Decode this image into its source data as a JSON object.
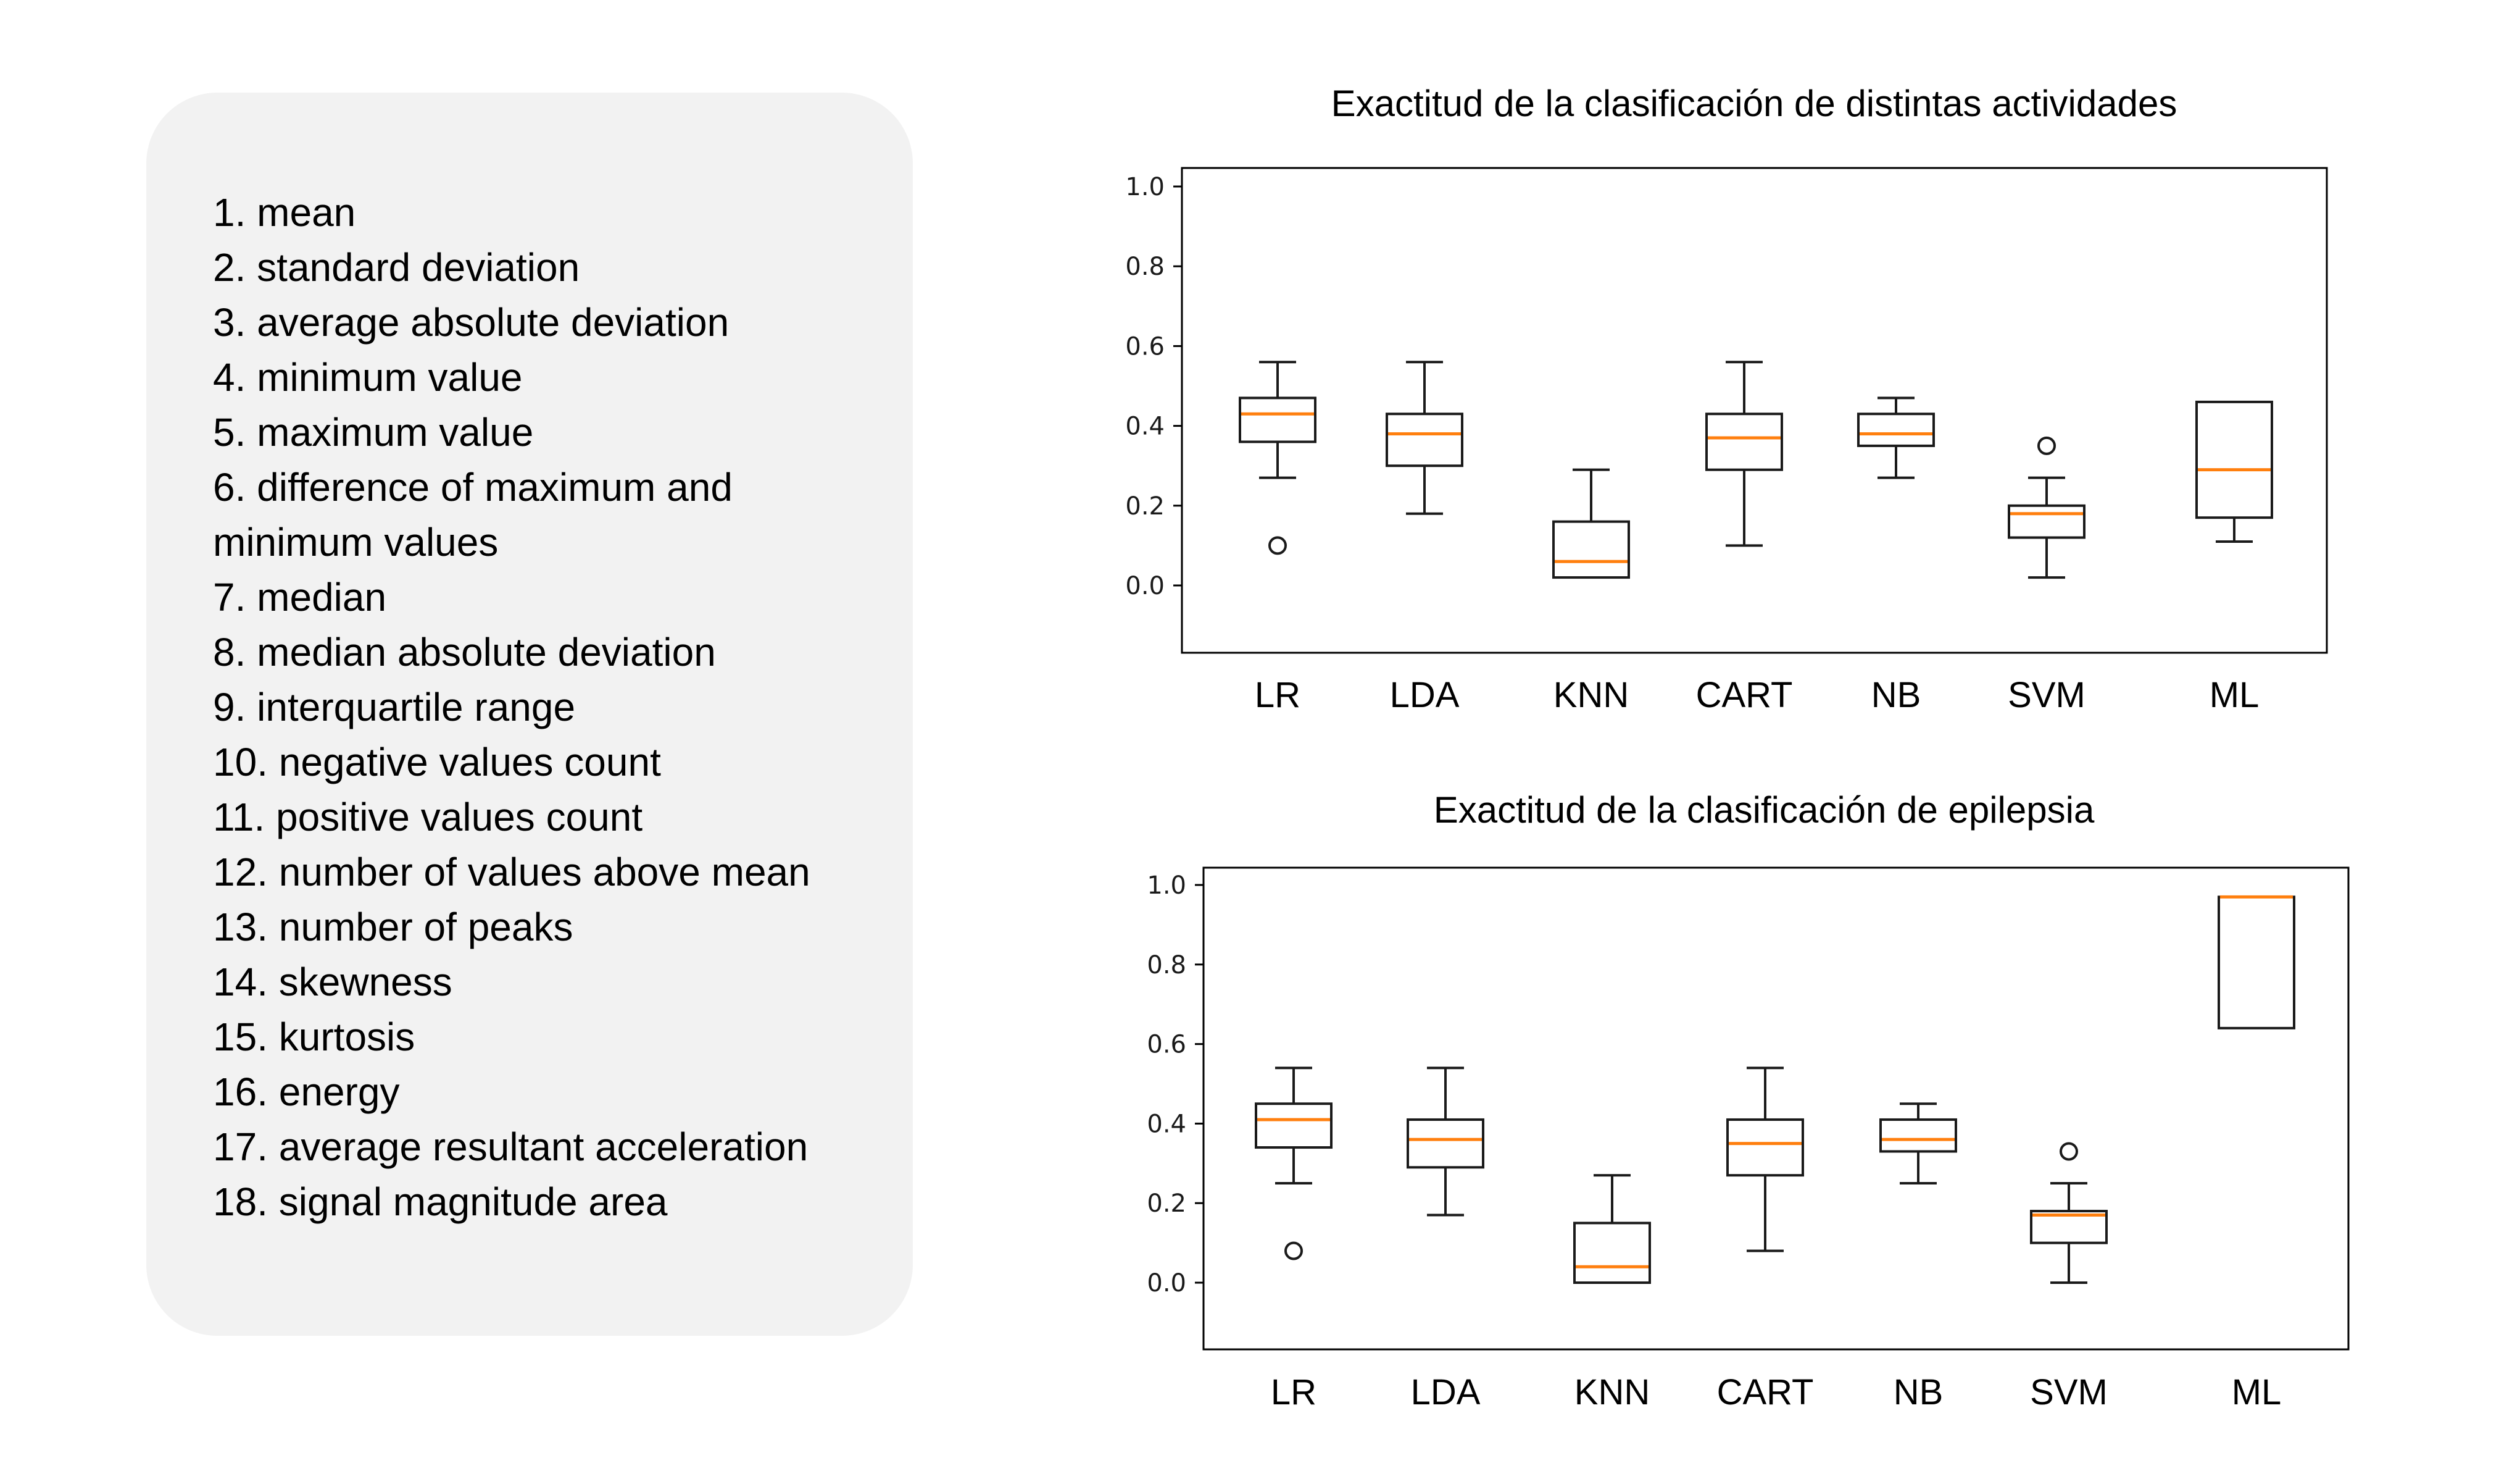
{
  "features": {
    "items": [
      "1. mean",
      "2. standard deviation",
      "3. average absolute deviation",
      "4. minimum value",
      "5. maximum value",
      "6. difference of maximum and",
      "minimum values",
      "7. median",
      "8. median absolute deviation",
      "9. interquartile range",
      "10. negative values count",
      "11. positive values count",
      "12. number of values above mean",
      "13. number of peaks",
      "14. skewness",
      "15. kurtosis",
      "16. energy",
      "17. average resultant acceleration",
      "18. signal magnitude area"
    ]
  },
  "colors": {
    "box": "#1a1a1a",
    "median": "#ff7f0e",
    "panel": "#f2f2f2"
  },
  "chart_data": [
    {
      "type": "box",
      "title": "Exactitud de la clasificación de distintas actividades",
      "xlabel": "",
      "ylabel": "",
      "ylim": [
        -0.17,
        1.05
      ],
      "yticks": [
        "0.0",
        "0.2",
        "0.4",
        "0.6",
        "0.8",
        "1.0"
      ],
      "grid": false,
      "categories": [
        "LR",
        "LDA",
        "KNN",
        "CART",
        "NB",
        "SVM",
        "ML"
      ],
      "boxes": [
        {
          "whislo": 0.27,
          "q1": 0.36,
          "med": 0.43,
          "q3": 0.47,
          "whishi": 0.56,
          "fliers": [
            0.1
          ]
        },
        {
          "whislo": 0.18,
          "q1": 0.3,
          "med": 0.38,
          "q3": 0.43,
          "whishi": 0.56,
          "fliers": []
        },
        {
          "whislo": 0.02,
          "q1": 0.02,
          "med": 0.06,
          "q3": 0.16,
          "whishi": 0.29,
          "fliers": []
        },
        {
          "whislo": 0.1,
          "q1": 0.29,
          "med": 0.37,
          "q3": 0.43,
          "whishi": 0.56,
          "fliers": []
        },
        {
          "whislo": 0.27,
          "q1": 0.35,
          "med": 0.38,
          "q3": 0.43,
          "whishi": 0.47,
          "fliers": []
        },
        {
          "whislo": 0.02,
          "q1": 0.12,
          "med": 0.18,
          "q3": 0.2,
          "whishi": 0.27,
          "fliers": [
            0.35
          ]
        },
        {
          "whislo": 0.11,
          "q1": 0.17,
          "med": 0.29,
          "q3": 0.46,
          "whishi": 0.46,
          "fliers": []
        }
      ]
    },
    {
      "type": "box",
      "title": "Exactitud de la clasificación de epilepsia",
      "xlabel": "",
      "ylabel": "",
      "ylim": [
        -0.17,
        1.05
      ],
      "yticks": [
        "0.0",
        "0.2",
        "0.4",
        "0.6",
        "0.8",
        "1.0"
      ],
      "grid": false,
      "categories": [
        "LR",
        "LDA",
        "KNN",
        "CART",
        "NB",
        "SVM",
        "ML"
      ],
      "boxes": [
        {
          "whislo": 0.25,
          "q1": 0.34,
          "med": 0.41,
          "q3": 0.45,
          "whishi": 0.54,
          "fliers": [
            0.08
          ]
        },
        {
          "whislo": 0.17,
          "q1": 0.29,
          "med": 0.36,
          "q3": 0.41,
          "whishi": 0.54,
          "fliers": []
        },
        {
          "whislo": 0.0,
          "q1": 0.0,
          "med": 0.04,
          "q3": 0.15,
          "whishi": 0.27,
          "fliers": []
        },
        {
          "whislo": 0.08,
          "q1": 0.27,
          "med": 0.35,
          "q3": 0.41,
          "whishi": 0.54,
          "fliers": []
        },
        {
          "whislo": 0.25,
          "q1": 0.33,
          "med": 0.36,
          "q3": 0.41,
          "whishi": 0.45,
          "fliers": []
        },
        {
          "whislo": 0.0,
          "q1": 0.1,
          "med": 0.17,
          "q3": 0.18,
          "whishi": 0.25,
          "fliers": [
            0.33
          ]
        },
        {
          "whislo": 0.64,
          "q1": 0.64,
          "med": 0.97,
          "q3": 0.97,
          "whishi": 0.97,
          "fliers": []
        }
      ]
    }
  ]
}
